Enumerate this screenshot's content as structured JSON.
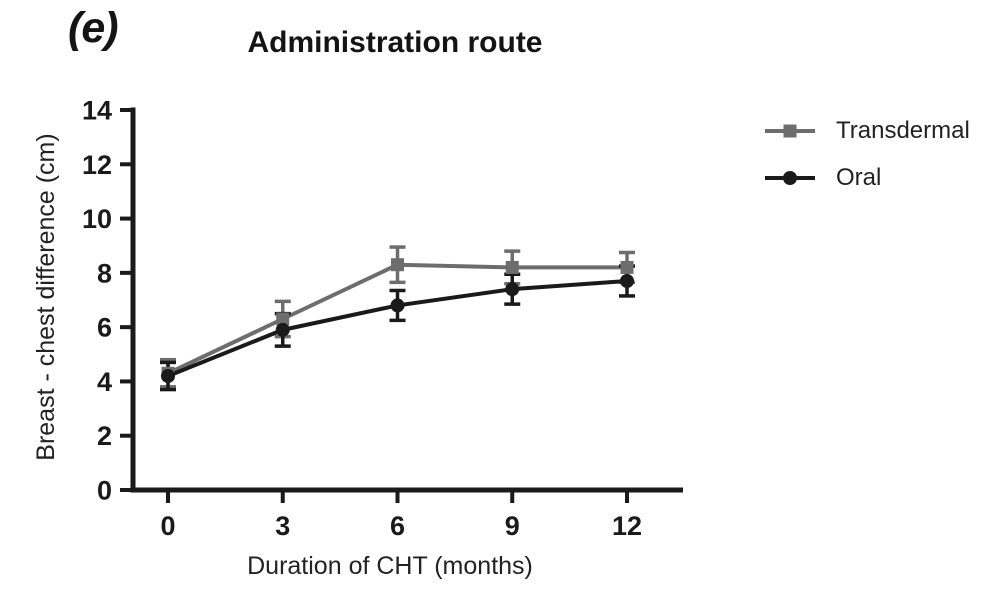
{
  "panel_label": "(e)",
  "chart_data": {
    "type": "line",
    "title": "Administration route",
    "xlabel": "Duration of CHT (months)",
    "ylabel": "Breast - chest difference (cm)",
    "x": [
      0,
      3,
      6,
      9,
      12
    ],
    "xtick_labels": [
      "0",
      "3",
      "6",
      "9",
      "12"
    ],
    "ylim": [
      0,
      14
    ],
    "yticks": [
      0,
      2,
      4,
      6,
      8,
      10,
      12,
      14
    ],
    "grid": false,
    "error_bars": true,
    "legend_position": "right",
    "series": [
      {
        "name": "Transdermal",
        "marker": "square",
        "color": "#6d6d6d",
        "values": [
          4.3,
          6.3,
          8.3,
          8.2,
          8.2
        ],
        "errors": [
          0.5,
          0.65,
          0.65,
          0.6,
          0.55
        ]
      },
      {
        "name": "Oral",
        "marker": "circle",
        "color": "#1a1a1a",
        "values": [
          4.2,
          5.9,
          6.8,
          7.4,
          7.7
        ],
        "errors": [
          0.5,
          0.6,
          0.55,
          0.55,
          0.55
        ]
      }
    ],
    "axis_color": "#1a1a1a"
  }
}
